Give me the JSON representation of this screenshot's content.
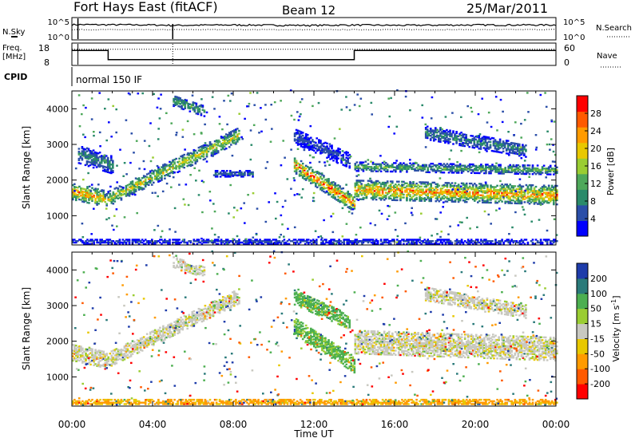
{
  "header": {
    "station": "Fort Hays East (fitACF)",
    "beam": "Beam 12",
    "date": "25/Mar/2011"
  },
  "time_axis": {
    "label": "Time UT",
    "ticks": [
      "00:00",
      "04:00",
      "08:00",
      "12:00",
      "16:00",
      "20:00",
      "00:00"
    ]
  },
  "noise_panel": {
    "left_label": "N.Sky",
    "right_label": "N.Search",
    "left_ticks": [
      "10^5",
      "10^0"
    ],
    "right_ticks": [
      "10^5",
      "10^0"
    ]
  },
  "freq_panel": {
    "left_label_line1": "Freq.",
    "left_label_line2": "[MHz]",
    "right_label": "Nave",
    "left_ticks": [
      "18",
      "8"
    ],
    "right_ticks": [
      "60",
      "0"
    ]
  },
  "cpid": {
    "label": "CPID",
    "value": "normal 150 IF"
  },
  "power_panel": {
    "ylabel": "Slant Range [km]",
    "yticks": [
      "1000",
      "2000",
      "3000",
      "4000"
    ],
    "colorbar_label": "Power [dB]",
    "colorbar_ticks": [
      "28",
      "24",
      "20",
      "16",
      "12",
      "8",
      "4"
    ]
  },
  "velocity_panel": {
    "ylabel": "Slant Range [km]",
    "yticks": [
      "1000",
      "2000",
      "3000",
      "4000"
    ],
    "colorbar_label": "Velocity [m s-1]",
    "colorbar_ticks": [
      "200",
      "100",
      "50",
      "15",
      "-15",
      "-50",
      "-100",
      "-200"
    ]
  },
  "chart_data": [
    {
      "type": "line",
      "title": "N.Sky / N.Search",
      "x_unit": "hours UT",
      "xlim": [
        0,
        24
      ],
      "series": [
        {
          "name": "N.Sky",
          "x": [
            0,
            0.3,
            4,
            5,
            8,
            12,
            14,
            16,
            20,
            24
          ],
          "y": [
            3000,
            3000,
            2500,
            2000,
            2500,
            2000,
            2500,
            2000,
            2500,
            2500
          ]
        },
        {
          "name": "N.Search",
          "x": [
            0,
            4,
            8,
            12,
            16,
            20,
            24
          ],
          "y": [
            200,
            180,
            200,
            180,
            200,
            190,
            200
          ]
        }
      ]
    },
    {
      "type": "line",
      "title": "Freq. / Nave",
      "x_unit": "hours UT",
      "xlim": [
        0,
        24
      ],
      "series": [
        {
          "name": "Freq. [MHz]",
          "x": [
            0,
            1.8,
            1.8,
            14.0,
            14.0,
            24
          ],
          "y": [
            16.5,
            16.5,
            11.0,
            11.0,
            16.5,
            16.5
          ]
        },
        {
          "name": "Nave",
          "x": [
            0,
            24
          ],
          "y": [
            55,
            55
          ]
        }
      ]
    },
    {
      "type": "heatmap",
      "title": "Power [dB]",
      "xlabel": "Time UT",
      "ylabel": "Slant Range [km]",
      "xlim": [
        0,
        24
      ],
      "ylim": [
        180,
        4500
      ],
      "clim": [
        0,
        30
      ],
      "regions": [
        {
          "t": [
            0.0,
            1.6
          ],
          "r_center": [
            1650,
            1450
          ],
          "r_half_width": 220,
          "peak_db": 27
        },
        {
          "t": [
            1.6,
            8.3
          ],
          "r_center": [
            1400,
            3250
          ],
          "r_half_width": 200,
          "peak_db": 20
        },
        {
          "t": [
            0.3,
            2.0
          ],
          "r_center": [
            2700,
            2400
          ],
          "r_half_width": 250,
          "peak_db": 10
        },
        {
          "t": [
            5.0,
            6.6
          ],
          "r_center": [
            4200,
            3900
          ],
          "r_half_width": 150,
          "peak_db": 14
        },
        {
          "t": [
            7.0,
            9.0
          ],
          "r_center": [
            2150,
            2150
          ],
          "r_half_width": 80,
          "peak_db": 8
        },
        {
          "t": [
            11.0,
            14.0
          ],
          "r_center": [
            2400,
            1300
          ],
          "r_half_width": 220,
          "peak_db": 28
        },
        {
          "t": [
            11.0,
            13.8
          ],
          "r_center": [
            3200,
            2500
          ],
          "r_half_width": 200,
          "peak_db": 6
        },
        {
          "t": [
            14.0,
            24.0
          ],
          "r_center": [
            1700,
            1550
          ],
          "r_half_width": 260,
          "peak_db": 27
        },
        {
          "t": [
            14.0,
            24.0
          ],
          "r_center": [
            2350,
            2250
          ],
          "r_half_width": 120,
          "peak_db": 14
        },
        {
          "t": [
            17.5,
            22.5
          ],
          "r_center": [
            3300,
            2800
          ],
          "r_half_width": 180,
          "peak_db": 10
        },
        {
          "t": [
            0.0,
            24.0
          ],
          "r_center": [
            250,
            250
          ],
          "r_half_width": 70,
          "peak_db": 6
        }
      ]
    },
    {
      "type": "heatmap",
      "title": "Velocity [m s-1]",
      "xlabel": "Time UT",
      "ylabel": "Slant Range [km]",
      "xlim": [
        0,
        24
      ],
      "ylim": [
        180,
        4500
      ],
      "clim": [
        -200,
        200
      ],
      "regions": [
        {
          "t": [
            0.0,
            1.6
          ],
          "r_center": [
            1650,
            1450
          ],
          "r_half_width": 220,
          "velocity": 0
        },
        {
          "t": [
            1.6,
            8.3
          ],
          "r_center": [
            1400,
            3250
          ],
          "r_half_width": 200,
          "velocity": 0
        },
        {
          "t": [
            5.0,
            6.6
          ],
          "r_center": [
            4200,
            3900
          ],
          "r_half_width": 150,
          "velocity": 0
        },
        {
          "t": [
            11.0,
            14.0
          ],
          "r_center": [
            2400,
            1300
          ],
          "r_half_width": 220,
          "velocity": 40
        },
        {
          "t": [
            11.0,
            13.8
          ],
          "r_center": [
            3200,
            2500
          ],
          "r_half_width": 200,
          "velocity": 45
        },
        {
          "t": [
            14.0,
            24.0
          ],
          "r_center": [
            1950,
            1750
          ],
          "r_half_width": 320,
          "velocity": 0
        },
        {
          "t": [
            17.5,
            22.5
          ],
          "r_center": [
            3300,
            2800
          ],
          "r_half_width": 180,
          "velocity": 0
        },
        {
          "t": [
            0.0,
            24.0
          ],
          "r_center": [
            250,
            250
          ],
          "r_half_width": 80,
          "velocity": -40
        }
      ]
    }
  ]
}
